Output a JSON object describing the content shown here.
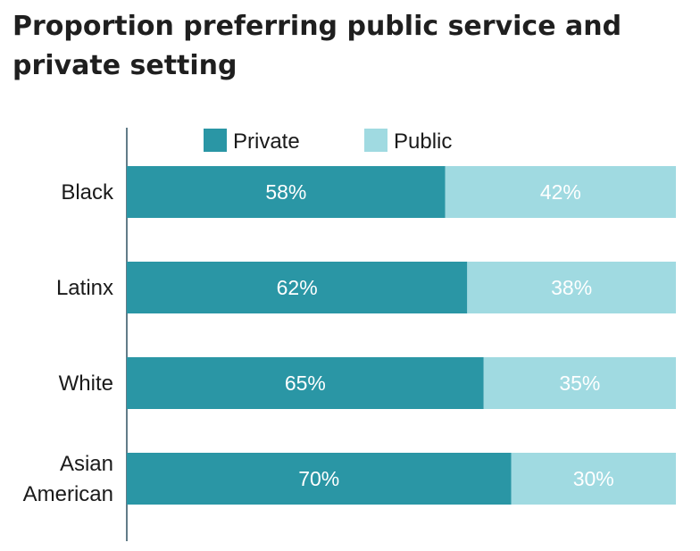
{
  "title": "Proportion preferring public service and private setting",
  "colors": {
    "private": "#2a96a5",
    "public": "#a0dae1",
    "axis": "#2f5060"
  },
  "chart_data": {
    "type": "bar",
    "orientation": "horizontal",
    "stacked": true,
    "percent_stacked": true,
    "title": "Proportion preferring public service and private setting",
    "categories": [
      [
        "Black"
      ],
      [
        "Latinx"
      ],
      [
        "White"
      ],
      [
        "Asian",
        "American"
      ]
    ],
    "series": [
      {
        "name": "Private",
        "values": [
          58,
          62,
          65,
          70
        ],
        "labels": [
          "58%",
          "62%",
          "65%",
          "70%"
        ]
      },
      {
        "name": "Public",
        "values": [
          42,
          38,
          35,
          30
        ],
        "labels": [
          "42%",
          "38%",
          "35%",
          "30%"
        ]
      }
    ],
    "xlim": [
      0,
      100
    ],
    "grid": false,
    "legend": "top"
  }
}
